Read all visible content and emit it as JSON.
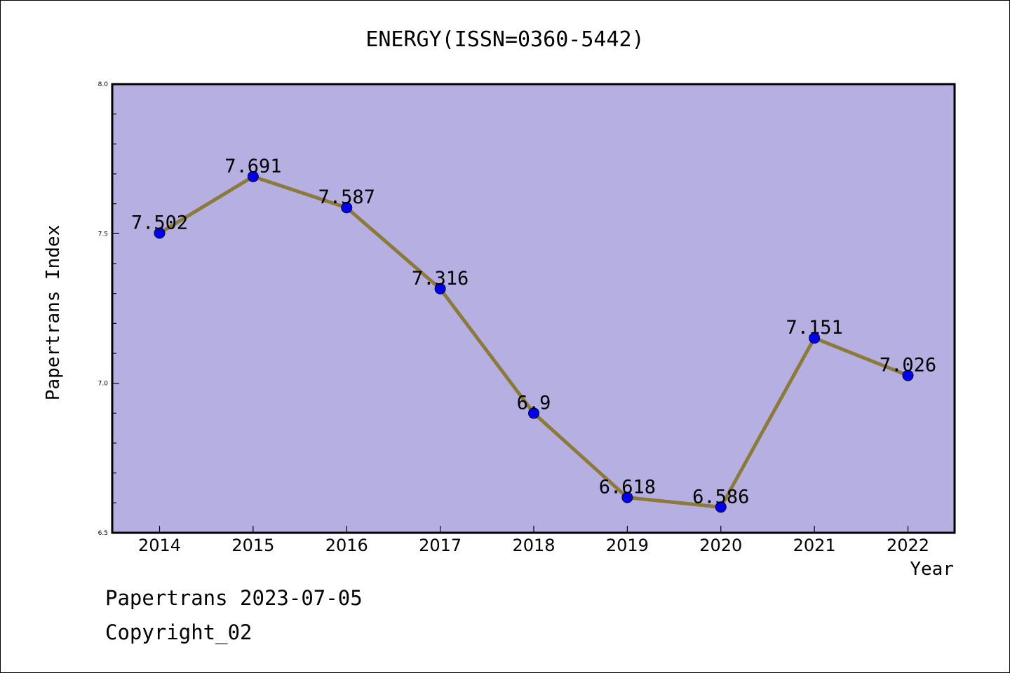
{
  "chart_data": {
    "type": "line",
    "title": "ENERGY(ISSN=0360-5442)",
    "xlabel": "Year",
    "ylabel": "Papertrans Index",
    "categories": [
      "2014",
      "2015",
      "2016",
      "2017",
      "2018",
      "2019",
      "2020",
      "2021",
      "2022"
    ],
    "values": [
      7.502,
      7.691,
      7.587,
      7.316,
      6.9,
      6.618,
      6.586,
      7.151,
      7.026
    ],
    "data_labels": [
      "7.502",
      "7.691",
      "7.587",
      "7.316",
      "6.9",
      "6.618",
      "6.586",
      "7.151",
      "7.026"
    ],
    "ylim": [
      6.5,
      8.0
    ],
    "yticks": [
      "6.5",
      "7.0",
      "7.5",
      "8.0"
    ],
    "grid": false,
    "colors": {
      "plot_background": "#b5afe2",
      "line": "#8c7a3a",
      "marker": "#0000ee"
    }
  },
  "footer": {
    "line1": "Papertrans 2023-07-05",
    "line2": "Copyright_02"
  }
}
